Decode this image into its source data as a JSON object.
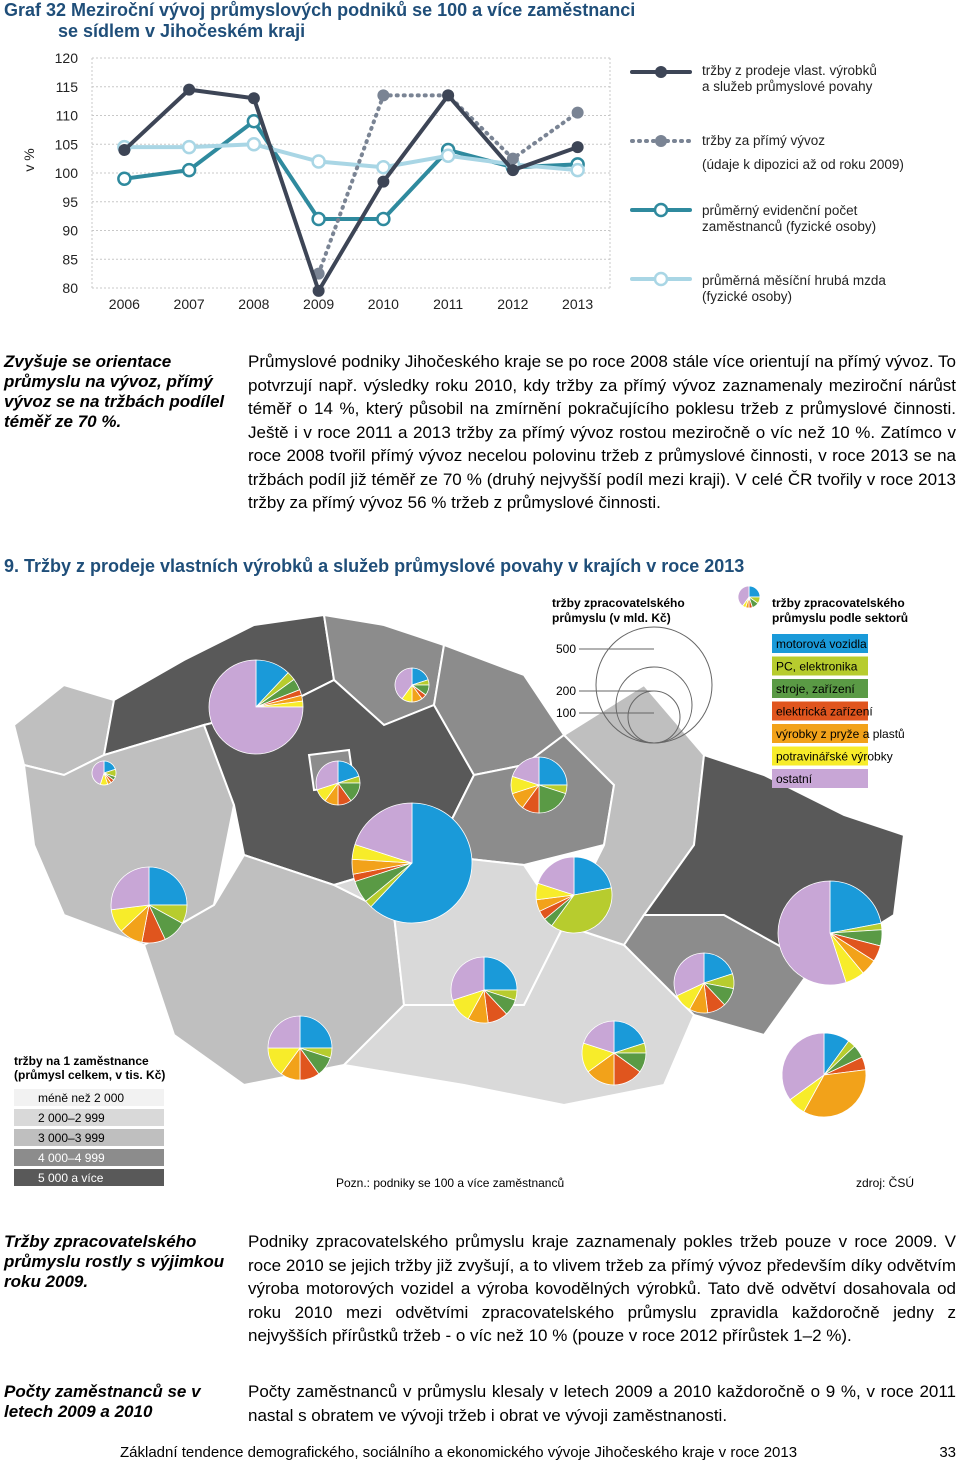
{
  "title": {
    "line1": "Graf 32 Meziroční vývoj průmyslových podniků se 100 a více zaměstnanci",
    "line2": "se sídlem v Jihočeském kraji"
  },
  "chart_data": {
    "type": "line",
    "title": "Graf 32 Meziroční vývoj průmyslových podniků se 100 a více zaměstnanci se sídlem v Jihočeském kraji",
    "ylabel": "v %",
    "ylim": [
      80,
      120
    ],
    "yticks": [
      "120",
      "115",
      "110",
      "105",
      "100",
      "95",
      "90",
      "85",
      "80"
    ],
    "categories": [
      "2006",
      "2007",
      "2008",
      "2009",
      "2010",
      "2011",
      "2012",
      "2013"
    ],
    "grid": true,
    "legend_position": "right",
    "series": [
      {
        "name": "tržby z prodeje vlast. výrobků a služeb průmyslové povahy",
        "color": "#3d4556",
        "style": "solid",
        "values": [
          104,
          114.5,
          113,
          79.5,
          98.5,
          113.5,
          100.5,
          104.5
        ]
      },
      {
        "name": "tržby za přímý vývoz",
        "color": "#7a8494",
        "style": "dotted",
        "values": [
          null,
          null,
          null,
          82.5,
          113.5,
          113.5,
          102.5,
          110.5
        ]
      },
      {
        "name": "průměrný evidenční počet zaměstnanců (fyzické osoby)",
        "color": "#2f8a9e",
        "style": "solid",
        "values": [
          99,
          100.5,
          109,
          92,
          92,
          104,
          101,
          101.5
        ]
      },
      {
        "name": "průměrná měsíční hrubá mzda (fyzické osoby)",
        "color": "#a9d6e5",
        "style": "solid",
        "values": [
          104.5,
          104.5,
          105,
          102,
          101,
          103,
          101.5,
          100.5
        ]
      }
    ],
    "legend_note": "(údaje k dipozici až od roku 2009)"
  },
  "legend": {
    "s1_line1": "tržby z prodeje vlast. výrobků",
    "s1_line2": "a služeb průmyslové povahy",
    "s2": "tržby za přímý vývoz",
    "s2_note": "(údaje k dipozici až od roku 2009)",
    "s3_line1": "průměrný evidenční počet",
    "s3_line2": "zaměstnanců (fyzické osoby)",
    "s4_line1": "průměrná měsíční hrubá mzda",
    "s4_line2": "(fyzické osoby)"
  },
  "note1": "Zvyšuje se orientace průmyslu na vývoz, přímý vývoz se na tržbách podílel téměř ze 70 %.",
  "para1": "Průmyslové podniky Jihočeského kraje se po roce 2008 stále více orientují na přímý vývoz. To potvrzují např. výsledky roku 2010, kdy tržby za přímý vývoz zaznamenaly meziroční nárůst téměř o 14 %, který působil na zmírnění pokračujícího poklesu tržeb z průmyslové činnosti. Ještě i v roce 2011 a 2013 tržby za přímý vývoz rostou meziročně o víc než 10 %. Zatímco v roce 2008 tvořil přímý vývoz necelou polovinu tržeb z průmyslové činnosti, v roce 2013 se na tržbách podíl již téměř ze 70 % (druhý nejvyšší podíl mezi kraji). V celé ČR tvořily v roce 2013 tržby za přímý vývoz 56 % tržeb z průmyslové činnosti.",
  "section_heading": "9.  Tržby z prodeje vlastních výrobků a služeb průmyslové povahy v krajích v roce 2013",
  "map": {
    "size_legend_title_1": "tržby zpracovatelského",
    "size_legend_title_2": "průmyslu (v mld. Kč)",
    "size_values": [
      "500",
      "200",
      "100"
    ],
    "sector_title_1": "tržby zpracovatelského",
    "sector_title_2": "průmyslu podle sektorů",
    "sectors": [
      {
        "label": "motorová vozidla",
        "color": "#1a9ad9"
      },
      {
        "label": "PC, elektronika",
        "color": "#b7cc2e"
      },
      {
        "label": "stroje, zařízení",
        "color": "#5a9a45"
      },
      {
        "label": "elektrická zařízení",
        "color": "#e0551e"
      },
      {
        "label": "výrobky z pryže a plastů",
        "color": "#f2a21a"
      },
      {
        "label": "potravinářské výrobky",
        "color": "#f7ec2a"
      },
      {
        "label": "ostatní",
        "color": "#c8a6d6"
      }
    ],
    "per_employee_title_1": "tržby na 1 zaměstnance",
    "per_employee_title_2": "(průmysl celkem, v tis. Kč)",
    "classes": [
      {
        "label": "méně než 2 000",
        "color": "#f2f2f2"
      },
      {
        "label": "2 000–2 999",
        "color": "#d9d9d9"
      },
      {
        "label": "3 000–3 999",
        "color": "#bfbfbf"
      },
      {
        "label": "4 000–4 999",
        "color": "#8c8c8c"
      },
      {
        "label": "5 000 a více",
        "color": "#595959"
      }
    ],
    "note": "Pozn.: podniky se 100 a více zaměstnanců",
    "source": "zdroj: ČSÚ"
  },
  "note2": "Tržby zpracovatelského průmyslu rostly s výjimkou roku 2009.",
  "para2": "Podniky zpracovatelského průmyslu kraje zaznamenaly pokles tržeb pouze v roce 2009. V roce 2010 se jejich tržby již zvyšují, a to vlivem tržeb za přímý vývoz především díky odvětvím výroba motorových vozidel a výroba kovodělných výrobků. Tato dvě odvětví dosahovala od roku 2010 mezi odvětvími zpracovatelského průmyslu zpravidla každoročně jedny z nejvyšších přírůstků tržeb - o víc než 10 % (pouze v roce 2012 přírůstek 1–2 %).",
  "note3": "Počty zaměstnanců se v letech 2009 a 2010",
  "para3": "Počty zaměstnanců v průmyslu klesaly v letech 2009 a 2010 každoročně o 9 %, v roce 2011 nastal s obratem ve vývoji tržeb i obrat ve vývoji zaměstnanosti.",
  "footer": {
    "text": "Základní tendence demografického, sociálního a ekonomického vývoje Jihočeského kraje v roce 2013",
    "page": "33"
  }
}
